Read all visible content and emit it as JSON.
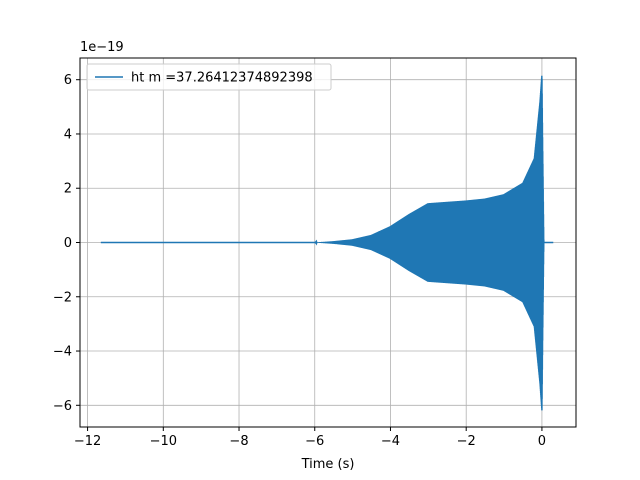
{
  "chart_data": {
    "type": "line",
    "title": "",
    "xlabel": "Time (s)",
    "ylabel": "",
    "y_offset_label": "1e−19",
    "xlim": [
      -12.2,
      0.9
    ],
    "ylim": [
      -6.8,
      6.8
    ],
    "xticks": [
      -12,
      -10,
      -8,
      -6,
      -4,
      -2,
      0
    ],
    "xtick_labels": [
      "−12",
      "−10",
      "−8",
      "−6",
      "−4",
      "−2",
      "0"
    ],
    "yticks": [
      -6,
      -4,
      -2,
      0,
      2,
      4,
      6
    ],
    "ytick_labels": [
      "−6",
      "−4",
      "−2",
      "0",
      "2",
      "4",
      "6"
    ],
    "grid": true,
    "legend_position": "top-left",
    "series": [
      {
        "name": "ht m =37.26412374892398",
        "color": "#1f77b4",
        "x_start": -11.65,
        "x_end": 0.3,
        "envelope": {
          "t": [
            -11.65,
            -6.0,
            -5.5,
            -5.0,
            -4.5,
            -4.0,
            -3.5,
            -3.0,
            -2.5,
            -2.0,
            -1.5,
            -1.0,
            -0.5,
            -0.2,
            -0.05,
            0.0,
            0.02,
            0.05,
            0.3
          ],
          "amplitude": [
            0.0,
            0.0,
            0.05,
            0.12,
            0.28,
            0.6,
            1.05,
            1.45,
            1.5,
            1.55,
            1.62,
            1.78,
            2.2,
            3.1,
            5.2,
            6.2,
            3.5,
            0.0,
            0.0
          ]
        }
      }
    ]
  }
}
